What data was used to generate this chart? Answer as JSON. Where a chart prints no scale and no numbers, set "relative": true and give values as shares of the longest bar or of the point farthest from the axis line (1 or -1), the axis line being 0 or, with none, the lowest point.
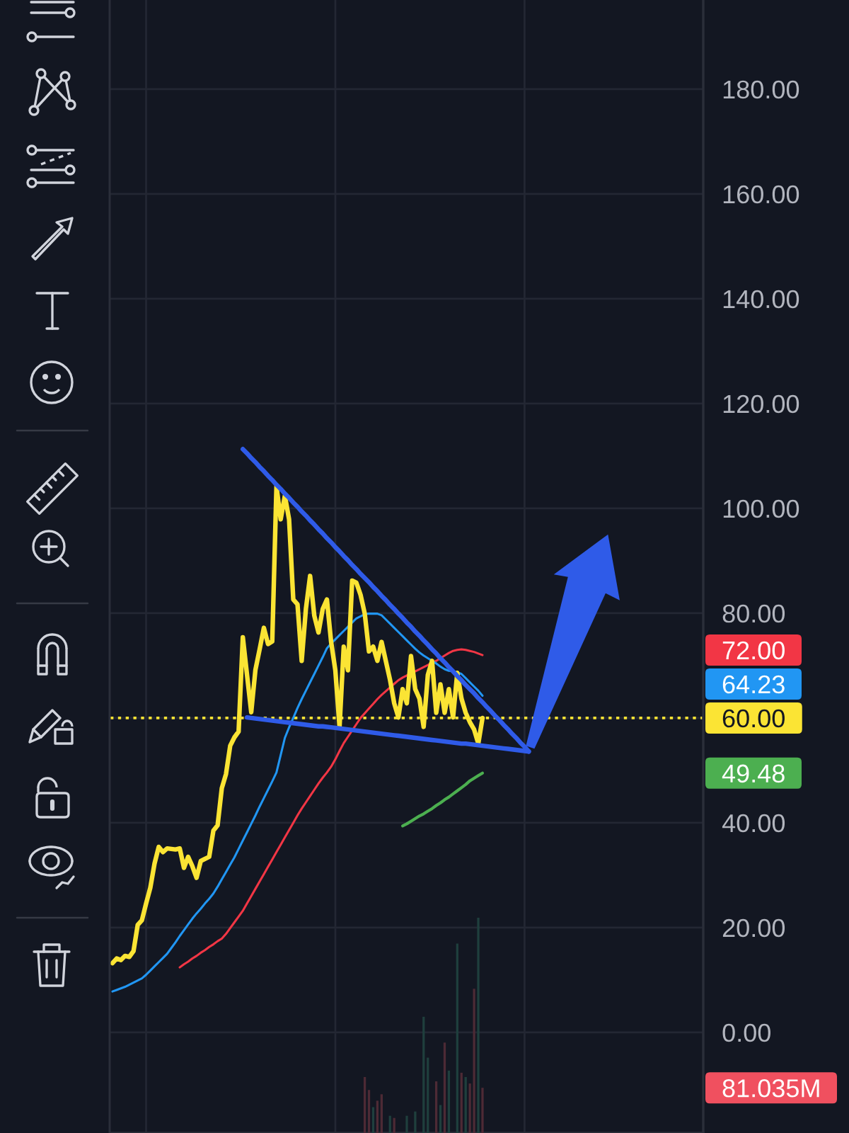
{
  "chart_data": [
    {
      "type": "line",
      "categories": [
        null,
        null,
        null,
        null,
        null,
        null,
        null,
        null,
        null,
        null,
        null,
        null,
        null,
        null,
        null,
        null,
        null,
        null,
        null,
        null,
        null,
        null,
        null,
        null,
        null,
        null,
        null,
        null,
        null,
        null,
        null,
        null,
        null,
        null,
        null,
        null,
        null,
        null,
        null,
        null,
        null,
        null,
        null,
        null,
        null,
        null,
        null,
        null,
        null,
        null,
        null,
        null,
        null,
        null,
        null,
        null,
        null,
        null,
        null,
        null,
        null,
        null,
        null,
        null,
        null,
        null,
        null,
        null,
        null,
        null,
        null,
        null,
        null,
        null,
        null,
        null,
        null,
        null,
        null,
        null,
        null,
        null,
        null,
        null,
        null,
        null,
        null,
        null,
        null,
        null,
        null,
        null,
        null,
        null,
        null,
        null,
        null,
        null,
        null,
        null,
        null,
        null,
        null,
        null,
        null,
        null,
        null,
        null,
        null,
        null,
        null,
        null,
        null,
        null,
        null,
        null,
        null,
        null,
        null,
        null,
        null,
        null,
        null,
        null,
        null,
        null,
        null,
        null,
        null,
        null,
        null,
        null,
        null,
        null,
        null,
        null,
        null,
        null,
        null,
        null,
        null
      ],
      "series": [
        {
          "color": "#f23645",
          "values": [
            null,
            null,
            null,
            null,
            null,
            null,
            null,
            null,
            null,
            null,
            null,
            null,
            null,
            null,
            null,
            null,
            12.4,
            13.0,
            13.5,
            14.1,
            14.6,
            15.2,
            15.7,
            16.3,
            16.8,
            17.4,
            17.9,
            18.8,
            19.9,
            21.0,
            22.1,
            23.2,
            24.6,
            26.0,
            27.4,
            28.8,
            30.2,
            31.6,
            33.0,
            34.4,
            35.8,
            37.2,
            38.6,
            40.0,
            41.4,
            42.7,
            43.9,
            45.1,
            46.3,
            47.5,
            48.6,
            49.6,
            50.7,
            52.1,
            53.7,
            55.2,
            56.4,
            57.6,
            58.8,
            60.0,
            60.9,
            61.8,
            62.7,
            63.6,
            64.4,
            65.1,
            65.8,
            66.5,
            67.2,
            67.7,
            68.1,
            68.5,
            68.9,
            69.3,
            69.7,
            70.1,
            70.5,
            70.9,
            71.4,
            71.9,
            72.4,
            72.8,
            73.0,
            73.1,
            73.0,
            72.8,
            72.6,
            72.3,
            72.0,
            null,
            null,
            null,
            null,
            null,
            null,
            null,
            null,
            null,
            null,
            null,
            null,
            null,
            null,
            null,
            null,
            null,
            null,
            null,
            null,
            null,
            null,
            null,
            null,
            null,
            null,
            null,
            null,
            null,
            null,
            null,
            null,
            null,
            null,
            null,
            null,
            null,
            null,
            null,
            null,
            null,
            null,
            null,
            null,
            null,
            null,
            null,
            null,
            null,
            null,
            null,
            null
          ]
        },
        {
          "color": "#2196f3",
          "values": [
            7.8,
            8.1,
            8.4,
            8.7,
            9.1,
            9.5,
            9.9,
            10.3,
            11.0,
            11.8,
            12.6,
            13.4,
            14.2,
            15.0,
            16.1,
            17.2,
            18.4,
            19.5,
            20.6,
            21.7,
            22.7,
            23.6,
            24.6,
            25.5,
            26.5,
            27.8,
            29.2,
            30.6,
            32.0,
            33.4,
            35.0,
            36.6,
            38.2,
            39.8,
            41.4,
            43.1,
            44.7,
            46.3,
            47.9,
            49.6,
            52.9,
            56.2,
            58.2,
            60.0,
            61.9,
            63.6,
            65.2,
            66.8,
            68.4,
            70.0,
            71.6,
            73.3,
            74.2,
            75.0,
            75.8,
            76.6,
            77.4,
            78.2,
            79.0,
            79.4,
            79.8,
            79.9,
            79.9,
            79.9,
            79.6,
            78.8,
            78.0,
            77.2,
            76.4,
            75.6,
            74.8,
            74.0,
            73.2,
            72.5,
            71.9,
            71.4,
            70.9,
            70.4,
            69.8,
            69.3,
            69.0,
            68.9,
            68.7,
            68.4,
            67.6,
            66.8,
            66.0,
            65.2,
            64.23,
            null,
            null,
            null,
            null,
            null,
            null,
            null,
            null,
            null,
            null,
            null,
            null,
            null,
            null,
            null,
            null,
            null,
            null,
            null,
            null,
            null,
            null,
            null,
            null,
            null,
            null,
            null,
            null,
            null,
            null,
            null,
            null,
            null,
            null,
            null,
            null,
            null,
            null,
            null,
            null,
            null,
            null,
            null,
            null,
            null,
            null,
            null,
            null,
            null,
            null,
            null,
            null
          ]
        },
        {
          "color": "#4caf50",
          "values": [
            null,
            null,
            null,
            null,
            null,
            null,
            null,
            null,
            null,
            null,
            null,
            null,
            null,
            null,
            null,
            null,
            null,
            null,
            null,
            null,
            null,
            null,
            null,
            null,
            null,
            null,
            null,
            null,
            null,
            null,
            null,
            null,
            null,
            null,
            null,
            null,
            null,
            null,
            null,
            null,
            null,
            null,
            null,
            null,
            null,
            null,
            null,
            null,
            null,
            null,
            null,
            null,
            null,
            null,
            null,
            null,
            null,
            null,
            null,
            null,
            null,
            null,
            null,
            null,
            null,
            null,
            null,
            null,
            null,
            39.4,
            39.8,
            40.3,
            40.8,
            41.3,
            41.7,
            42.2,
            42.7,
            43.3,
            43.8,
            44.4,
            44.9,
            45.5,
            46.1,
            46.7,
            47.3,
            48.0,
            48.5,
            49.0,
            49.48,
            null,
            null,
            null,
            null,
            null,
            null,
            null,
            null,
            null,
            null,
            null,
            null,
            null,
            null,
            null,
            null,
            null,
            null,
            null,
            null,
            null,
            null,
            null,
            null,
            null,
            null,
            null,
            null,
            null,
            null,
            null,
            null,
            null,
            null,
            null,
            null,
            null,
            null,
            null,
            null,
            null,
            null,
            null,
            null,
            null,
            null,
            null,
            null,
            null,
            null,
            null,
            null
          ]
        },
        {
          "color": "#fbe434",
          "values": [
            13.2,
            14.1,
            13.8,
            14.6,
            14.4,
            15.5,
            20.5,
            21.4,
            24.6,
            27.6,
            32.2,
            35.4,
            34.4,
            35.1,
            35.0,
            34.9,
            35.1,
            31.4,
            33.5,
            31.7,
            29.5,
            32.7,
            33.1,
            33.5,
            38.5,
            39.5,
            46.6,
            49.3,
            54.7,
            56.3,
            57.4,
            75.4,
            68.2,
            61.1,
            69.2,
            73.1,
            77.2,
            74.1,
            74.6,
            104.2,
            97.9,
            102.4,
            97.9,
            82.6,
            81.7,
            70.9,
            80.8,
            87.1,
            79.5,
            76.3,
            80.8,
            82.6,
            74.5,
            69.1,
            58.3,
            73.6,
            69.1,
            86.2,
            85.8,
            83.5,
            79.9,
            72.7,
            73.6,
            70.9,
            74.5,
            70.9,
            67.3,
            62.8,
            60.1,
            65.5,
            62.8,
            71.8,
            65.5,
            63.7,
            58.3,
            68.2,
            70.9,
            61.0,
            66.4,
            61.0,
            65.5,
            60.1,
            68.6,
            63.7,
            61.0,
            59.2,
            57.8,
            55.1,
            60,
            null,
            null,
            null,
            null,
            null,
            null,
            null,
            null,
            null,
            null,
            null,
            null,
            null,
            null,
            null,
            null,
            null,
            null,
            null,
            null,
            null,
            null,
            null,
            null,
            null,
            null,
            null,
            null,
            null,
            null,
            null,
            null,
            null,
            null,
            null,
            null,
            null,
            null,
            null,
            null,
            null,
            null,
            null,
            null,
            null,
            null,
            null,
            null,
            null,
            null,
            null,
            null
          ]
        },
        {
          "color": "#2f5be8",
          "values": [
            null,
            null,
            null,
            null,
            null,
            null,
            null,
            null,
            null,
            null,
            null,
            null,
            null,
            null,
            null,
            null,
            null,
            null,
            null,
            null,
            null,
            null,
            null,
            null,
            null,
            null,
            null,
            null,
            null,
            null,
            null,
            111.3,
            110.5,
            109.6,
            108.8,
            107.9,
            107.1,
            106.2,
            105.4,
            104.5,
            103.7,
            102.8,
            102.0,
            101.1,
            100.3,
            99.4,
            98.6,
            97.7,
            96.9,
            96.0,
            95.2,
            94.3,
            93.5,
            92.6,
            91.8,
            90.9,
            90.1,
            89.2,
            88.4,
            87.5,
            86.7,
            85.9,
            85.0,
            84.2,
            83.3,
            82.5,
            81.6,
            80.8,
            79.9,
            79.1,
            78.2,
            77.4,
            76.5,
            75.7,
            74.8,
            74.0,
            73.1,
            72.3,
            71.4,
            70.6,
            69.7,
            68.9,
            68.0,
            67.2,
            66.3,
            65.5,
            64.7,
            63.8,
            63.0,
            62.1,
            61.3,
            60.4,
            59.6,
            58.7,
            57.9,
            57.0,
            56.2,
            55.3,
            54.5,
            53.6,
            null,
            null,
            null,
            null,
            null,
            null,
            null,
            null,
            null,
            null,
            null,
            null,
            null,
            null,
            null,
            null,
            null,
            null,
            null,
            null,
            null,
            null,
            null,
            null,
            null,
            null,
            null,
            null,
            null,
            null,
            null,
            null,
            null,
            null,
            null,
            null,
            null,
            null,
            null,
            null,
            null
          ]
        },
        {
          "color": "#2f5be8",
          "values": [
            null,
            null,
            null,
            null,
            null,
            null,
            null,
            null,
            null,
            null,
            null,
            null,
            null,
            null,
            null,
            null,
            null,
            null,
            null,
            null,
            null,
            null,
            null,
            null,
            null,
            null,
            null,
            null,
            null,
            null,
            null,
            null,
            60.1,
            60.0,
            59.9,
            59.8,
            59.7,
            59.6,
            59.5,
            59.4,
            59.3,
            59.2,
            59.1,
            59.0,
            58.9,
            58.8,
            58.7,
            58.6,
            58.5,
            58.4,
            58.4,
            58.3,
            58.2,
            58.1,
            58.0,
            57.9,
            57.8,
            57.7,
            57.6,
            57.5,
            57.4,
            57.3,
            57.2,
            57.1,
            57.0,
            56.9,
            56.8,
            56.7,
            56.6,
            56.5,
            56.4,
            56.3,
            56.2,
            56.1,
            56.0,
            55.9,
            55.8,
            55.7,
            55.6,
            55.5,
            55.4,
            55.3,
            55.2,
            55.1,
            55.1,
            55.0,
            54.9,
            54.8,
            54.7,
            54.6,
            54.5,
            54.4,
            54.3,
            54.2,
            54.1,
            54.0,
            53.9,
            53.8,
            53.7,
            53.6,
            null,
            null,
            null,
            null,
            null,
            null,
            null,
            null,
            null,
            null,
            null,
            null,
            null,
            null,
            null,
            null,
            null,
            null,
            null,
            null,
            null,
            null,
            null,
            null,
            null,
            null,
            null,
            null,
            null,
            null,
            null,
            null,
            null,
            null,
            null,
            null,
            null,
            null,
            null,
            null,
            null
          ]
        }
      ],
      "ylim": [
        -19.2,
        197
      ],
      "yticks": [
        {
          "value": 0,
          "label": "0.00"
        },
        {
          "value": 20,
          "label": "20.00"
        },
        {
          "value": 40,
          "label": "40.00"
        },
        {
          "value": 60,
          "label": null
        },
        {
          "value": 80,
          "label": "80.00"
        },
        {
          "value": 100,
          "label": "100.00"
        },
        {
          "value": 120,
          "label": "120.00"
        },
        {
          "value": 140,
          "label": "140.00"
        },
        {
          "value": 160,
          "label": "160.00"
        },
        {
          "value": 180,
          "label": "180.00"
        }
      ],
      "grid": true,
      "tick_labels": "y",
      "ref_lines": [
        {
          "axis": "y",
          "value": 60,
          "label": "60.00",
          "color": "#fbe434",
          "line_style": "dotted"
        }
      ],
      "annotations": [
        "72.00",
        "64.23",
        "49.48"
      ]
    },
    {
      "type": "bar",
      "relative": true,
      "categories": [
        null,
        null,
        null,
        null,
        null,
        null,
        null,
        null,
        null,
        null,
        null,
        null,
        null,
        null,
        null,
        null,
        null,
        null,
        null,
        null,
        null,
        null,
        null,
        null,
        null,
        null,
        null,
        null,
        null,
        null,
        null,
        null,
        null,
        null,
        null,
        null,
        null,
        null,
        null,
        null,
        null,
        null,
        null,
        null,
        null,
        null,
        null,
        null,
        null,
        null,
        null,
        null,
        null,
        null,
        null,
        null,
        null,
        null,
        null,
        null,
        null,
        null,
        null,
        null,
        null,
        null,
        null,
        null,
        null,
        null,
        null,
        null,
        null,
        null,
        null,
        null,
        null,
        null,
        null,
        null,
        null,
        null,
        null,
        null,
        null,
        null,
        null,
        null,
        null,
        null,
        null,
        null,
        null,
        null,
        null,
        null,
        null,
        null,
        null,
        null,
        null,
        null,
        null,
        null,
        null,
        null,
        null,
        null,
        null,
        null,
        null,
        null,
        null,
        null,
        null,
        null,
        null,
        null,
        null,
        null,
        null,
        null,
        null,
        null,
        null,
        null,
        null,
        null,
        null,
        null,
        null,
        null,
        null,
        null,
        null,
        null,
        null,
        null,
        null,
        null,
        null
      ],
      "values": [
        null,
        null,
        null,
        null,
        null,
        null,
        null,
        null,
        null,
        null,
        null,
        null,
        null,
        null,
        null,
        null,
        null,
        null,
        null,
        null,
        null,
        null,
        null,
        null,
        null,
        null,
        null,
        null,
        null,
        null,
        null,
        null,
        null,
        null,
        null,
        null,
        null,
        null,
        null,
        null,
        null,
        null,
        null,
        null,
        null,
        null,
        null,
        null,
        null,
        null,
        null,
        null,
        null,
        null,
        null,
        null,
        null,
        null,
        null,
        null,
        0.26,
        0.2,
        0.12,
        0.15,
        0.18,
        null,
        0.08,
        0.07,
        null,
        null,
        0.08,
        null,
        0.1,
        null,
        0.54,
        0.35,
        null,
        0.24,
        0.13,
        0.42,
        0.29,
        null,
        0.88,
        0.28,
        0.26,
        0.23,
        0.67,
        1,
        0.21,
        null,
        null,
        null,
        null,
        null,
        null,
        null,
        null,
        null,
        null,
        null,
        null,
        null,
        null,
        null,
        null,
        null,
        null,
        null,
        null,
        null,
        null,
        null,
        null,
        null,
        null,
        null,
        null,
        null,
        null,
        null,
        null,
        null,
        null,
        null,
        null,
        null,
        null,
        null,
        null,
        null,
        null,
        null,
        null,
        null,
        null,
        null,
        null,
        null,
        null,
        null,
        null
      ],
      "colors": [
        null,
        null,
        null,
        null,
        null,
        null,
        null,
        null,
        null,
        null,
        null,
        null,
        null,
        null,
        null,
        null,
        null,
        null,
        null,
        null,
        null,
        null,
        null,
        null,
        null,
        null,
        null,
        null,
        null,
        null,
        null,
        null,
        null,
        null,
        null,
        null,
        null,
        null,
        null,
        null,
        null,
        null,
        null,
        null,
        null,
        null,
        null,
        null,
        null,
        null,
        null,
        null,
        null,
        null,
        null,
        null,
        null,
        null,
        null,
        null,
        "#4d2a35",
        "#4d2a35",
        "#1f3f3d",
        "#4d2a35",
        "#4d2a35",
        null,
        "#1f3f3d",
        "#4d2a35",
        null,
        null,
        "#1f3f3d",
        null,
        "#1f3f3d",
        null,
        "#1f3f3d",
        "#1f3f3d",
        null,
        "#4d2a35",
        "#1f3f3d",
        "#4d2a35",
        "#1f3f3d",
        null,
        "#1f3f3d",
        "#4d2a35",
        "#1f3f3d",
        "#4d2a35",
        "#4d2a35",
        "#1f3f3d",
        "#4d2a35",
        null,
        null,
        null,
        null,
        null,
        null,
        null,
        null,
        null,
        null,
        null,
        null,
        null,
        null,
        null,
        null,
        null,
        null,
        null,
        null,
        null,
        null,
        null,
        null,
        null,
        null,
        null,
        null,
        null,
        null,
        null,
        null,
        null,
        null,
        null,
        null,
        null,
        null,
        null,
        null,
        null,
        null,
        null,
        null,
        null,
        null,
        null,
        null,
        null,
        null,
        null,
        null
      ],
      "tick_labels": false,
      "annotations": [
        "81.035M"
      ]
    }
  ]
}
